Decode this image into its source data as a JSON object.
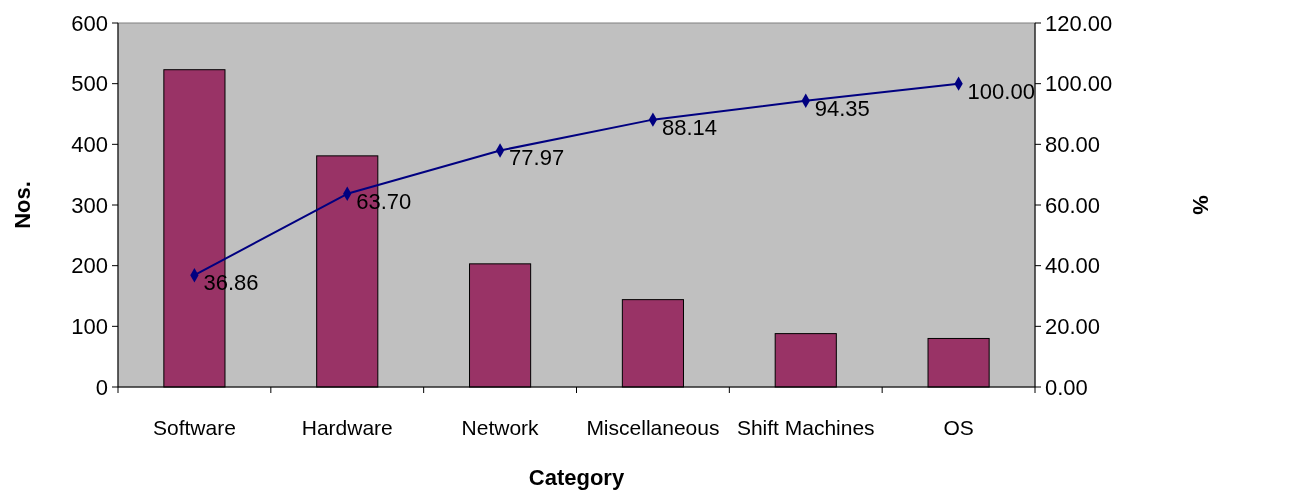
{
  "chart_data": {
    "type": "bar",
    "xlabel": "Category",
    "ylabel": "Nos.",
    "y2label": "%",
    "categories": [
      "Software",
      "Hardware",
      "Network",
      "Miscellaneous",
      "Shift Machines",
      "OS"
    ],
    "series": [
      {
        "color": "#993366",
        "values": [
          523,
          381,
          203,
          144,
          88,
          80
        ]
      },
      {
        "type": "line",
        "axis": "y2",
        "color": "#000080",
        "marker": "diamond",
        "values": [
          36.86,
          63.7,
          77.97,
          88.14,
          94.35,
          100.0
        ],
        "value_labels": [
          "36.86",
          "63.70",
          "77.97",
          "88.14",
          "94.35",
          "100.00"
        ]
      }
    ],
    "ylim": [
      0,
      600
    ],
    "yticks": [
      0,
      100,
      200,
      300,
      400,
      500,
      600
    ],
    "y2lim": [
      0,
      120
    ],
    "y2ticks": [
      {
        "value": 0,
        "label": "0.00"
      },
      {
        "value": 20,
        "label": "20.00"
      },
      {
        "value": 40,
        "label": "40.00"
      },
      {
        "value": 60,
        "label": "60.00"
      },
      {
        "value": 80,
        "label": "80.00"
      },
      {
        "value": 100,
        "label": "100.00"
      },
      {
        "value": 120,
        "label": "120.00"
      }
    ],
    "grid": false
  }
}
